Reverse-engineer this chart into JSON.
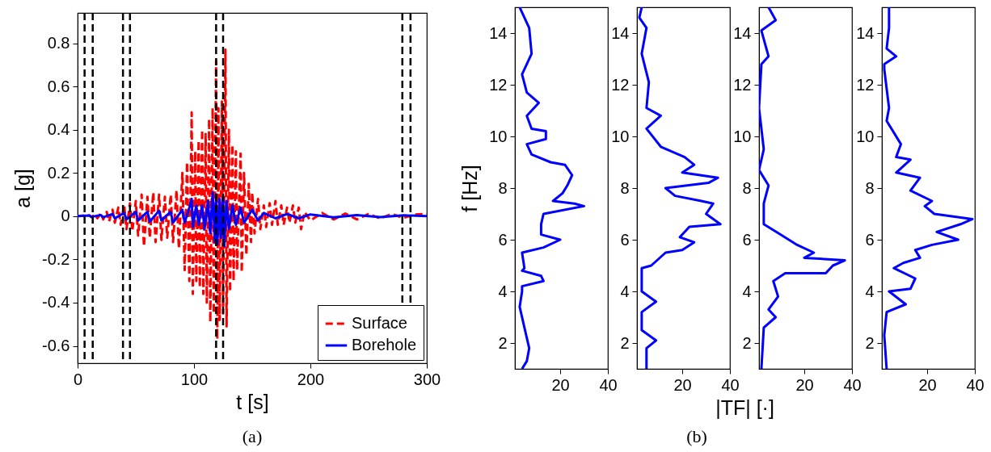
{
  "chart_data": [
    {
      "type": "line",
      "xlabel": "t [s]",
      "ylabel": "a [g]",
      "annotations": [
        "(a)"
      ],
      "xlim": [
        0,
        300
      ],
      "xticks": [
        0,
        100,
        200,
        300
      ],
      "ylim": [
        -0.68,
        0.94
      ],
      "yticks": [
        -0.6,
        -0.4,
        -0.2,
        0,
        0.2,
        0.4,
        0.6,
        0.8
      ],
      "legend": "bottom right",
      "series": [
        {
          "name": "Surface",
          "color": "#ff0000",
          "line_style": "dashed",
          "x": [
            0,
            5,
            6,
            10,
            12,
            15,
            17,
            20,
            22,
            25,
            27,
            30,
            32,
            35,
            37,
            40,
            42,
            45,
            47,
            50,
            52,
            55,
            57,
            60,
            62,
            65,
            67,
            70,
            72,
            75,
            77,
            80,
            82,
            85,
            87,
            90,
            92,
            94,
            96,
            98,
            99,
            101,
            102,
            104,
            105,
            107,
            108,
            110,
            111,
            113,
            114,
            116,
            117,
            119,
            120,
            121,
            122,
            124,
            125,
            127,
            128,
            130,
            131,
            133,
            134,
            136,
            137,
            140,
            141,
            143,
            145,
            147,
            149,
            150,
            152,
            155,
            157,
            160,
            162,
            165,
            167,
            170,
            172,
            175,
            177,
            180,
            182,
            185,
            187,
            190,
            192,
            195,
            200,
            210,
            220,
            230,
            240,
            250,
            260,
            270,
            280,
            290,
            300
          ],
          "values": [
            0,
            0.003,
            -0.003,
            0.004,
            -0.005,
            0.008,
            -0.01,
            0.015,
            -0.015,
            0.02,
            -0.025,
            0.03,
            -0.03,
            0.04,
            -0.04,
            0.05,
            -0.06,
            0.06,
            -0.07,
            0.07,
            -0.09,
            0.1,
            -0.14,
            0.09,
            -0.1,
            0.11,
            -0.12,
            0.1,
            -0.11,
            0.09,
            -0.1,
            0.1,
            -0.12,
            0.12,
            -0.15,
            0.2,
            -0.25,
            0.25,
            -0.3,
            0.48,
            -0.36,
            0.3,
            -0.3,
            0.35,
            -0.33,
            0.4,
            -0.36,
            0.38,
            -0.4,
            0.45,
            -0.49,
            0.5,
            -0.45,
            0.72,
            -0.57,
            0.5,
            -0.48,
            0.53,
            -0.45,
            0.77,
            -0.51,
            0.4,
            -0.35,
            0.33,
            -0.3,
            0.3,
            -0.25,
            0.29,
            -0.26,
            0.2,
            -0.18,
            0.15,
            -0.12,
            0.11,
            -0.08,
            0.08,
            -0.06,
            0.05,
            -0.05,
            0.06,
            -0.04,
            0.07,
            -0.04,
            0.05,
            -0.04,
            0.04,
            -0.03,
            0.05,
            -0.03,
            0.04,
            -0.06,
            0.02,
            -0.02,
            0.015,
            -0.015,
            0.012,
            -0.015,
            0.01,
            -0.01,
            0.01,
            -0.008,
            0.008,
            0.01
          ]
        },
        {
          "name": "Borehole",
          "color": "#0000ff",
          "line_style": "solid",
          "x": [
            0,
            10,
            12,
            20,
            22,
            30,
            32,
            40,
            42,
            50,
            52,
            60,
            62,
            70,
            72,
            80,
            82,
            90,
            92,
            96,
            98,
            99,
            102,
            104,
            107,
            109,
            112,
            114,
            116,
            118,
            119,
            120,
            122,
            123,
            125,
            126,
            128,
            130,
            133,
            136,
            140,
            143,
            150,
            155,
            160,
            170,
            180,
            190,
            200,
            220,
            240,
            260,
            280,
            300
          ],
          "values": [
            0,
            0.003,
            -0.003,
            0.005,
            -0.005,
            0.01,
            -0.01,
            0.015,
            -0.015,
            0.02,
            -0.02,
            0.02,
            -0.025,
            0.025,
            -0.02,
            0.02,
            -0.03,
            0.03,
            -0.03,
            0.04,
            0.08,
            -0.05,
            0.05,
            -0.04,
            0.05,
            -0.06,
            0.07,
            -0.08,
            0.11,
            -0.12,
            0.1,
            -0.13,
            0.08,
            -0.1,
            0.09,
            -0.14,
            0.07,
            -0.06,
            0.05,
            -0.04,
            0.04,
            -0.03,
            0.03,
            -0.02,
            0.015,
            -0.01,
            0.01,
            -0.01,
            0.008,
            -0.005,
            0.005,
            -0.004,
            0.004,
            0
          ]
        }
      ],
      "ref_lines": [
        {
          "axis": "x",
          "value": 6,
          "color": "#000000",
          "line_style": "dashed"
        },
        {
          "axis": "x",
          "value": 13,
          "color": "#000000",
          "line_style": "dashed"
        },
        {
          "axis": "x",
          "value": 39,
          "color": "#000000",
          "line_style": "dashed"
        },
        {
          "axis": "x",
          "value": 45,
          "color": "#000000",
          "line_style": "dashed"
        },
        {
          "axis": "x",
          "value": 119,
          "color": "#000000",
          "line_style": "dashed"
        },
        {
          "axis": "x",
          "value": 125,
          "color": "#000000",
          "line_style": "dashed"
        },
        {
          "axis": "x",
          "value": 279,
          "color": "#000000",
          "line_style": "dashed"
        },
        {
          "axis": "x",
          "value": 286,
          "color": "#000000",
          "line_style": "dashed"
        }
      ]
    },
    {
      "type": "line",
      "ylabel": "f [Hz]",
      "xlim": [
        1,
        40
      ],
      "xticks": [
        20,
        40
      ],
      "ylim": [
        1,
        15
      ],
      "yticks": [
        2,
        4,
        6,
        8,
        10,
        12,
        14
      ],
      "series": [
        {
          "color": "#0000ff",
          "x": [
            3,
            7,
            8,
            4,
            6,
            11,
            6,
            8,
            14,
            14,
            6,
            8,
            16,
            22,
            25,
            23,
            21,
            17,
            26,
            30,
            13,
            12,
            12,
            20,
            13,
            4,
            5,
            4,
            12,
            13,
            4,
            4,
            3,
            5,
            7,
            6,
            4
          ],
          "values": [
            15,
            14.2,
            13.2,
            12.4,
            11.7,
            11.3,
            10.8,
            10.3,
            10.2,
            9.9,
            9.7,
            9.3,
            9,
            8.9,
            8.5,
            8.1,
            7.8,
            7.5,
            7.4,
            7.3,
            7,
            6.6,
            6.2,
            6,
            5.7,
            5.5,
            4.9,
            4.8,
            4.6,
            4.4,
            4.2,
            4,
            3.4,
            2.6,
            1.8,
            1.3,
            1
          ]
        }
      ]
    },
    {
      "type": "line",
      "xlabel": "|TF| [·]",
      "annotations": [
        "(b)"
      ],
      "xlim": [
        1,
        40
      ],
      "xticks": [
        20,
        40
      ],
      "ylim": [
        1,
        15
      ],
      "yticks": [
        2,
        4,
        6,
        8,
        10,
        12,
        14
      ],
      "series": [
        {
          "color": "#0000ff",
          "x": [
            3,
            2,
            5,
            3,
            6,
            5,
            11,
            5,
            11,
            21,
            25,
            20,
            35,
            31,
            13,
            17,
            28,
            33,
            30,
            36,
            23,
            19,
            25,
            20,
            13,
            7,
            3,
            3,
            9,
            3,
            3,
            9,
            5,
            5
          ],
          "values": [
            15,
            14.6,
            14.2,
            13.2,
            12.1,
            11.1,
            10.8,
            10.3,
            9.6,
            9.2,
            8.9,
            8.6,
            8.4,
            8.2,
            8,
            7.7,
            7.5,
            7.4,
            7,
            6.6,
            6.5,
            6.1,
            5.9,
            5.6,
            5.5,
            5,
            4.9,
            4,
            3.6,
            3.2,
            2.5,
            2.1,
            1.8,
            1
          ]
        }
      ]
    },
    {
      "type": "line",
      "xlim": [
        1,
        40
      ],
      "xticks": [
        20,
        40
      ],
      "ylim": [
        1,
        15
      ],
      "yticks": [
        2,
        4,
        6,
        8,
        10,
        12,
        14
      ],
      "series": [
        {
          "color": "#0000ff",
          "x": [
            5,
            8,
            2,
            5,
            2,
            1,
            3,
            1,
            5,
            3,
            3,
            10,
            17,
            24,
            20,
            37,
            32,
            29,
            12,
            7,
            9,
            5,
            8,
            3,
            2
          ],
          "values": [
            15,
            14.5,
            14.1,
            13.1,
            12.8,
            11.1,
            9.5,
            8.7,
            8.1,
            7.4,
            6.6,
            6.2,
            5.8,
            5.5,
            5.3,
            5.2,
            5,
            4.7,
            4.7,
            4.4,
            3.8,
            3.3,
            3,
            2.6,
            1
          ]
        }
      ]
    },
    {
      "type": "line",
      "xlim": [
        1,
        40
      ],
      "xticks": [
        20,
        40
      ],
      "ylim": [
        1,
        15
      ],
      "yticks": [
        2,
        4,
        6,
        8,
        10,
        12,
        14
      ],
      "series": [
        {
          "color": "#0000ff",
          "x": [
            4,
            4,
            3,
            7,
            2,
            2,
            4,
            3,
            9,
            7,
            13,
            7,
            17,
            13,
            22,
            19,
            23,
            39,
            34,
            24,
            33,
            22,
            15,
            17,
            10,
            6,
            15,
            13,
            4,
            11,
            3,
            2,
            3
          ],
          "values": [
            15,
            14.2,
            13.4,
            13.1,
            12.8,
            12.6,
            11.1,
            10.6,
            9.7,
            9.2,
            9.1,
            8.6,
            8.4,
            7.9,
            7.5,
            7.3,
            7,
            6.8,
            6.6,
            6.3,
            6,
            5.8,
            5.6,
            5.3,
            5.1,
            4.9,
            4.5,
            4.1,
            4,
            3.5,
            3.2,
            2.3,
            1
          ]
        }
      ]
    }
  ]
}
